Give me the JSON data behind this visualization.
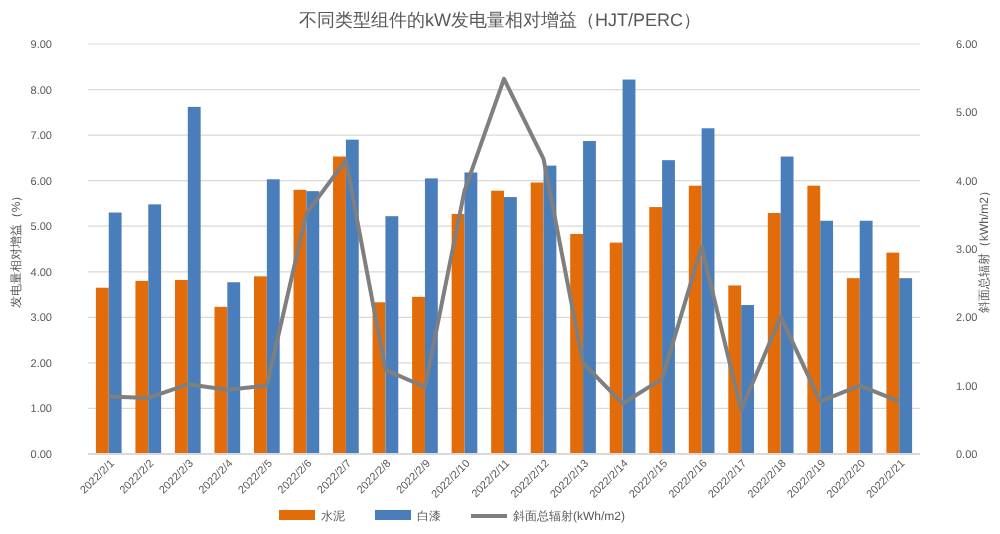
{
  "chart_data": {
    "type": "bar",
    "title": "不同类型组件的kW发电量相对增益（HJT/PERC）",
    "ylabel": "发电量相对增益（%）",
    "y2label": "斜面总辐射（kWh/m2）",
    "categories": [
      "2022/2/1",
      "2022/2/2",
      "2022/2/3",
      "2022/2/4",
      "2022/2/5",
      "2022/2/6",
      "2022/2/7",
      "2022/2/8",
      "2022/2/9",
      "2022/2/10",
      "2022/2/11",
      "2022/2/12",
      "2022/2/13",
      "2022/2/14",
      "2022/2/15",
      "2022/2/16",
      "2022/2/17",
      "2022/2/18",
      "2022/2/19",
      "2022/2/20",
      "2022/2/21"
    ],
    "series": [
      {
        "name": "水泥",
        "color": "#e36c0a",
        "values": [
          3.65,
          3.8,
          3.82,
          3.23,
          3.9,
          5.8,
          6.53,
          3.33,
          3.45,
          5.27,
          5.78,
          5.96,
          4.83,
          4.64,
          5.42,
          5.89,
          3.7,
          5.29,
          5.89,
          3.86,
          4.42
        ]
      },
      {
        "name": "白漆",
        "color": "#4a7ebb",
        "values": [
          5.3,
          5.48,
          7.62,
          3.77,
          6.03,
          5.77,
          6.9,
          5.22,
          6.05,
          6.18,
          5.64,
          6.33,
          6.87,
          8.22,
          6.45,
          7.15,
          3.27,
          6.53,
          5.12,
          5.12,
          3.86
        ]
      },
      {
        "name": "斜面总辐射(kWh/m2)",
        "type": "line",
        "axis": "y2",
        "color": "#7f7f7f",
        "values": [
          0.84,
          0.82,
          1.02,
          0.94,
          1.0,
          3.52,
          4.3,
          1.23,
          0.98,
          3.85,
          5.49,
          4.32,
          1.33,
          0.74,
          1.1,
          3.03,
          0.64,
          2.01,
          0.77,
          1.0,
          0.77
        ]
      }
    ],
    "ylim": [
      0,
      9
    ],
    "yticks": [
      {
        "value": 0,
        "label": "0.00"
      },
      {
        "value": 1,
        "label": "1.00"
      },
      {
        "value": 2,
        "label": "2.00"
      },
      {
        "value": 3,
        "label": "3.00"
      },
      {
        "value": 4,
        "label": "4.00"
      },
      {
        "value": 5,
        "label": "5.00"
      },
      {
        "value": 6,
        "label": "6.00"
      },
      {
        "value": 7,
        "label": "7.00"
      },
      {
        "value": 8,
        "label": "8.00"
      },
      {
        "value": 9,
        "label": "9.00"
      }
    ],
    "y2lim": [
      0,
      6
    ],
    "y2ticks": [
      {
        "value": 0,
        "label": "0.00"
      },
      {
        "value": 1,
        "label": "1.00"
      },
      {
        "value": 2,
        "label": "2.00"
      },
      {
        "value": 3,
        "label": "3.00"
      },
      {
        "value": 4,
        "label": "4.00"
      },
      {
        "value": 5,
        "label": "5.00"
      },
      {
        "value": 6,
        "label": "6.00"
      }
    ],
    "grid": "y",
    "legend": "bottom"
  }
}
